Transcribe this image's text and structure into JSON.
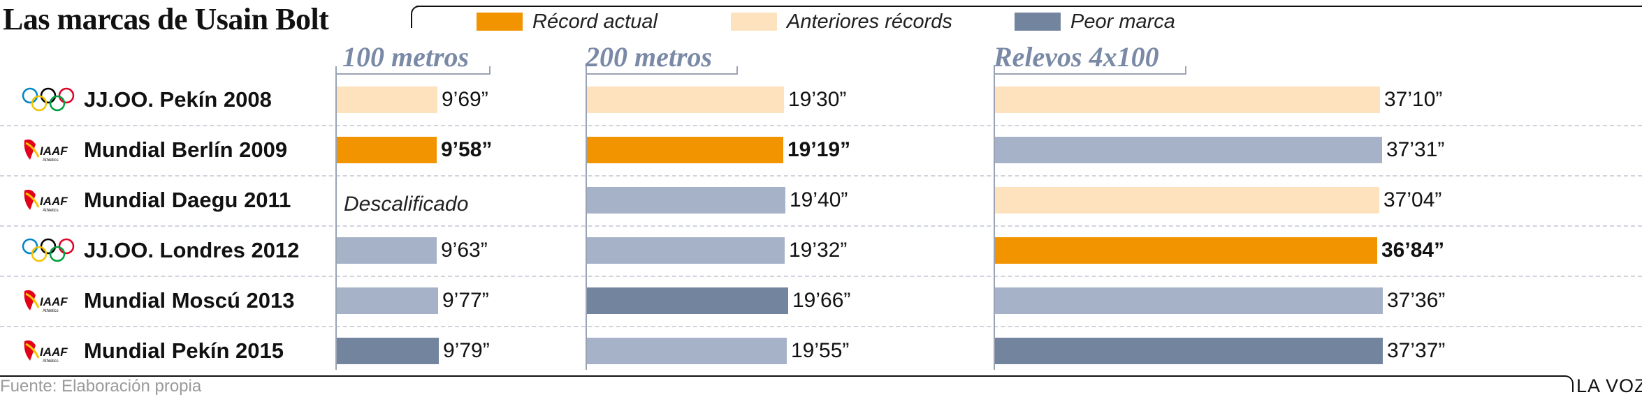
{
  "title": "Las marcas de Usain Bolt",
  "legend": [
    {
      "label": "Récord actual",
      "color": "#f29400"
    },
    {
      "label": "Anteriores récords",
      "color": "#fde2bd"
    },
    {
      "label": "Peor marca",
      "color": "#73849f"
    }
  ],
  "colors": {
    "record": "#f29400",
    "previous": "#fde2bd",
    "normal": "#a6b2c8",
    "worst": "#73849f"
  },
  "events": [
    {
      "name": "JJ.OO. Pekín 2008",
      "logo": "olympic-rings-icon"
    },
    {
      "name": "Mundial Berlín 2009",
      "logo": "iaaf-logo-icon"
    },
    {
      "name": "Mundial Daegu 2011",
      "logo": "iaaf-logo-icon"
    },
    {
      "name": "JJ.OO. Londres 2012",
      "logo": "olympic-rings-icon"
    },
    {
      "name": "Mundial Moscú 2013",
      "logo": "iaaf-logo-icon"
    },
    {
      "name": "Mundial Pekín 2015",
      "logo": "iaaf-logo-icon"
    }
  ],
  "chart_data": {
    "type": "bar",
    "title": "Las marcas de Usain Bolt",
    "categories": [
      "JJ.OO. Pekín 2008",
      "Mundial Berlín 2009",
      "Mundial Daegu 2011",
      "JJ.OO. Londres 2012",
      "Mundial Moscú 2013",
      "Mundial Pekín 2015"
    ],
    "series": [
      {
        "name": "100 metros",
        "values": [
          9.69,
          9.58,
          null,
          9.63,
          9.77,
          9.79
        ],
        "labels": [
          "9’69”",
          "9’58”",
          "Descalificado",
          "9’63”",
          "9’77”",
          "9’79”"
        ],
        "status": [
          "previous",
          "record",
          "dq",
          "normal",
          "normal",
          "worst"
        ]
      },
      {
        "name": "200 metros",
        "values": [
          19.3,
          19.19,
          19.4,
          19.32,
          19.66,
          19.55
        ],
        "labels": [
          "19’30”",
          "19’19”",
          "19’40”",
          "19’32”",
          "19’66”",
          "19’55”"
        ],
        "status": [
          "previous",
          "record",
          "normal",
          "normal",
          "worst",
          "normal"
        ]
      },
      {
        "name": "Relevos 4x100",
        "values": [
          37.1,
          37.31,
          37.04,
          36.84,
          37.36,
          37.37
        ],
        "labels": [
          "37’10”",
          "37’31”",
          "37’04”",
          "36’84”",
          "37’36”",
          "37’37”"
        ],
        "status": [
          "previous",
          "normal",
          "previous",
          "record",
          "normal",
          "worst"
        ]
      }
    ]
  },
  "source": "Fuente: Elaboración propia",
  "brand": "LA VOZ"
}
